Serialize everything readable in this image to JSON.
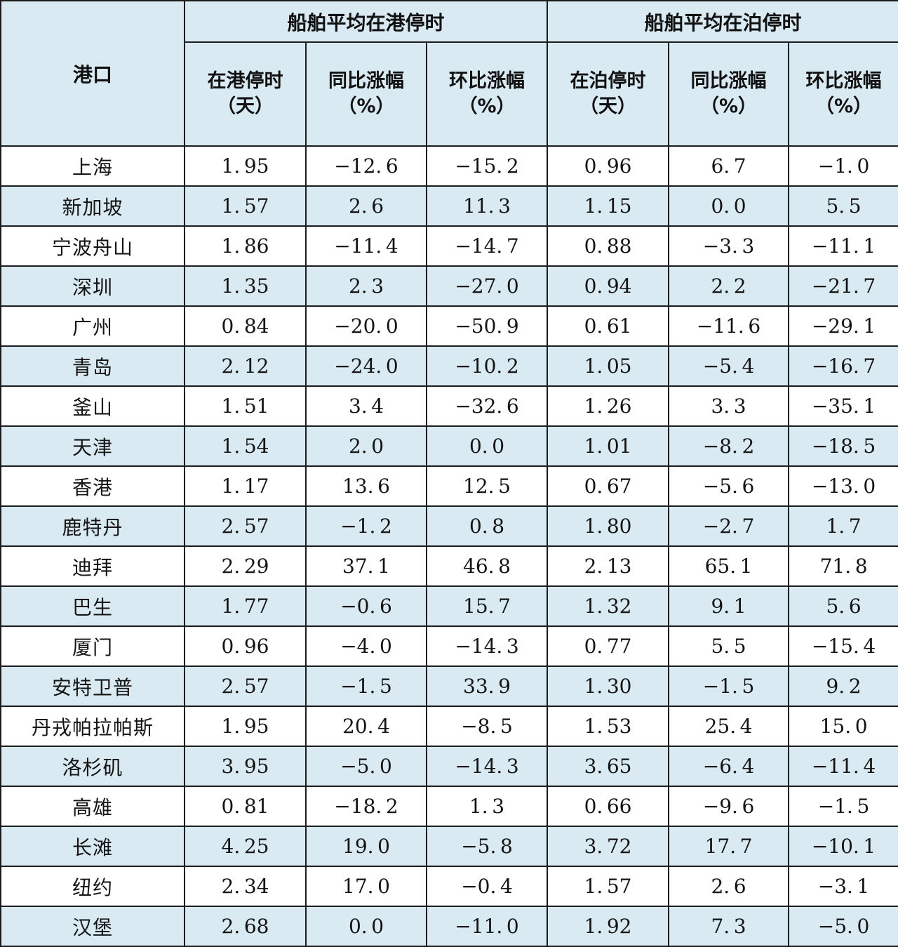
{
  "header": {
    "port": "港口",
    "groups": [
      {
        "label": "船舶平均在港停时"
      },
      {
        "label": "船舶平均在泊停时"
      }
    ],
    "sub_columns": [
      {
        "line1": "在港停时",
        "line2": "（天）"
      },
      {
        "line1": "同比涨幅",
        "line2": "（%）"
      },
      {
        "line1": "环比涨幅",
        "line2": "（%）"
      },
      {
        "line1": "在泊停时",
        "line2": "（天）"
      },
      {
        "line1": "同比涨幅",
        "line2": "（%）"
      },
      {
        "line1": "环比涨幅",
        "line2": "（%）"
      }
    ]
  },
  "rows": [
    {
      "port": "上海",
      "values": [
        "1.95",
        "-12.6",
        "-15.2",
        "0.96",
        "6.7",
        "-1.0"
      ]
    },
    {
      "port": "新加坡",
      "values": [
        "1.57",
        "2.6",
        "11.3",
        "1.15",
        "0.0",
        "5.5"
      ]
    },
    {
      "port": "宁波舟山",
      "values": [
        "1.86",
        "-11.4",
        "-14.7",
        "0.88",
        "-3.3",
        "-11.1"
      ]
    },
    {
      "port": "深圳",
      "values": [
        "1.35",
        "2.3",
        "-27.0",
        "0.94",
        "2.2",
        "-21.7"
      ]
    },
    {
      "port": "广州",
      "values": [
        "0.84",
        "-20.0",
        "-50.9",
        "0.61",
        "-11.6",
        "-29.1"
      ]
    },
    {
      "port": "青岛",
      "values": [
        "2.12",
        "-24.0",
        "-10.2",
        "1.05",
        "-5.4",
        "-16.7"
      ]
    },
    {
      "port": "釜山",
      "values": [
        "1.51",
        "3.4",
        "-32.6",
        "1.26",
        "3.3",
        "-35.1"
      ]
    },
    {
      "port": "天津",
      "values": [
        "1.54",
        "2.0",
        "0.0",
        "1.01",
        "-8.2",
        "-18.5"
      ]
    },
    {
      "port": "香港",
      "values": [
        "1.17",
        "13.6",
        "12.5",
        "0.67",
        "-5.6",
        "-13.0"
      ]
    },
    {
      "port": "鹿特丹",
      "values": [
        "2.57",
        "-1.2",
        "0.8",
        "1.80",
        "-2.7",
        "1.7"
      ]
    },
    {
      "port": "迪拜",
      "values": [
        "2.29",
        "37.1",
        "46.8",
        "2.13",
        "65.1",
        "71.8"
      ]
    },
    {
      "port": "巴生",
      "values": [
        "1.77",
        "-0.6",
        "15.7",
        "1.32",
        "9.1",
        "5.6"
      ]
    },
    {
      "port": "厦门",
      "values": [
        "0.96",
        "-4.0",
        "-14.3",
        "0.77",
        "5.5",
        "-15.4"
      ]
    },
    {
      "port": "安特卫普",
      "values": [
        "2.57",
        "-1.5",
        "33.9",
        "1.30",
        "-1.5",
        "9.2"
      ]
    },
    {
      "port": "丹戎帕拉帕斯",
      "values": [
        "1.95",
        "20.4",
        "-8.5",
        "1.53",
        "25.4",
        "15.0"
      ]
    },
    {
      "port": "洛杉矶",
      "values": [
        "3.95",
        "-5.0",
        "-14.3",
        "3.65",
        "-6.4",
        "-11.4"
      ]
    },
    {
      "port": "高雄",
      "values": [
        "0.81",
        "-18.2",
        "1.3",
        "0.66",
        "-9.6",
        "-1.5"
      ]
    },
    {
      "port": "长滩",
      "values": [
        "4.25",
        "19.0",
        "-5.8",
        "3.72",
        "17.7",
        "-10.1"
      ]
    },
    {
      "port": "纽约",
      "values": [
        "2.34",
        "17.0",
        "-0.4",
        "1.57",
        "2.6",
        "-3.1"
      ]
    },
    {
      "port": "汉堡",
      "values": [
        "2.68",
        "0.0",
        "-11.0",
        "1.92",
        "7.3",
        "-5.0"
      ]
    }
  ],
  "colors": {
    "stripe": "#d9eaf2",
    "header_bg": "#d9eaf2",
    "border": "#1c1c1c",
    "text": "#141414"
  }
}
